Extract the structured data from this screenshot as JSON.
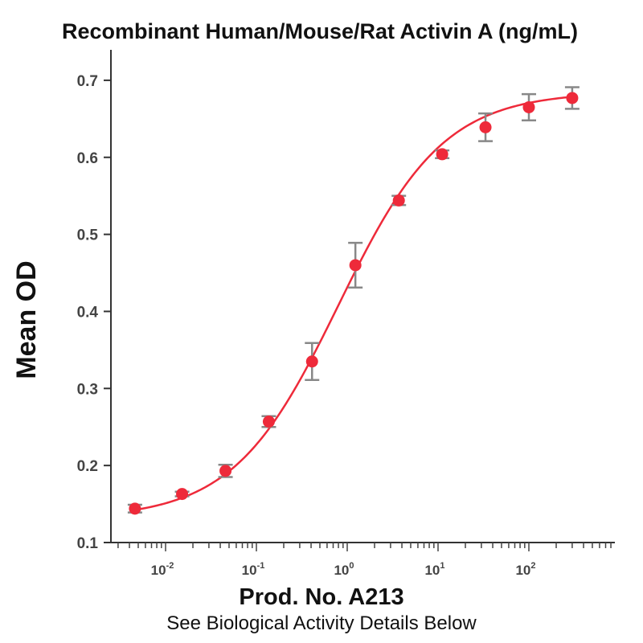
{
  "chart_data": {
    "type": "scatter",
    "title": "Recombinant Human/Mouse/Rat Activin A (ng/mL)",
    "xlabel": "Prod. No. A213",
    "ylabel": "Mean OD",
    "footnote": "See Biological Activity Details Below",
    "x_scale": "log",
    "xlim": [
      0.003,
      800
    ],
    "ylim": [
      0.1,
      0.75
    ],
    "x_ticks": [
      {
        "base": "10",
        "exp": "-2",
        "value": 0.01
      },
      {
        "base": "10",
        "exp": "-1",
        "value": 0.1
      },
      {
        "base": "10",
        "exp": "0",
        "value": 1
      },
      {
        "base": "10",
        "exp": "1",
        "value": 10
      },
      {
        "base": "10",
        "exp": "2",
        "value": 100
      }
    ],
    "y_ticks": [
      "0.1",
      "0.2",
      "0.3",
      "0.4",
      "0.5",
      "0.6",
      "0.7"
    ],
    "grid": false,
    "series": [
      {
        "color": "#ee2a3a",
        "fit": "4PL",
        "points": [
          {
            "x": 0.0046,
            "y": 0.144,
            "err": 0.005
          },
          {
            "x": 0.0152,
            "y": 0.163,
            "err": 0.003
          },
          {
            "x": 0.0457,
            "y": 0.193,
            "err": 0.008
          },
          {
            "x": 0.137,
            "y": 0.257,
            "err": 0.007
          },
          {
            "x": 0.41,
            "y": 0.335,
            "err": 0.024
          },
          {
            "x": 1.23,
            "y": 0.46,
            "err": 0.029
          },
          {
            "x": 3.7,
            "y": 0.544,
            "err": 0.006
          },
          {
            "x": 11.1,
            "y": 0.604,
            "err": 0.005
          },
          {
            "x": 33.3,
            "y": 0.639,
            "err": 0.018
          },
          {
            "x": 100,
            "y": 0.665,
            "err": 0.017
          },
          {
            "x": 300,
            "y": 0.677,
            "err": 0.014
          }
        ],
        "curve_params": {
          "bottom": 0.131,
          "top": 0.685,
          "ec50": 0.8,
          "hill": 0.75
        }
      }
    ],
    "colors": {
      "point": "#ee2a3a",
      "curve": "#ee2a3a",
      "error_bar": "#888888",
      "axis": "#333333"
    }
  }
}
